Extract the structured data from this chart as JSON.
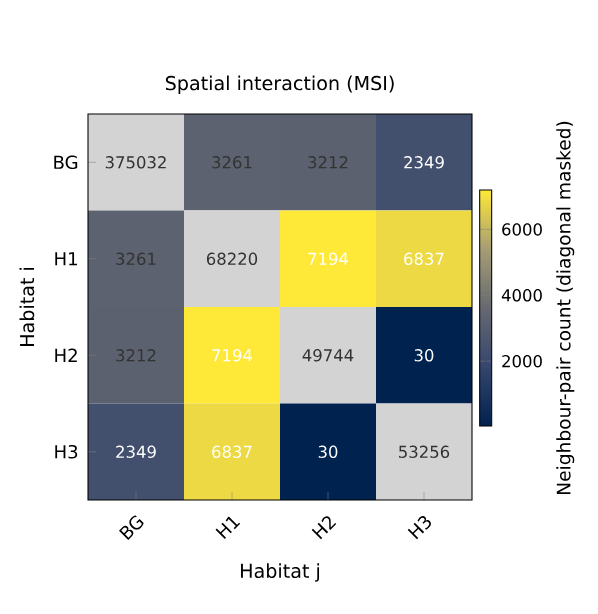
{
  "chart_data": {
    "type": "heatmap",
    "title": "Spatial interaction (MSI)",
    "xlabel": "Habitat j",
    "ylabel": "Habitat i",
    "clabel": "Neighbour-pair count (diagonal masked)",
    "categories": [
      "BG",
      "H1",
      "H2",
      "H3"
    ],
    "y_categories": [
      "BG",
      "H1",
      "H2",
      "H3"
    ],
    "cells": [
      [
        null,
        3261,
        3212,
        2349
      ],
      [
        3261,
        null,
        7194,
        6837
      ],
      [
        3212,
        7194,
        null,
        30
      ],
      [
        2349,
        6837,
        30,
        null
      ]
    ],
    "cell_labels": [
      [
        "375032",
        "3261",
        "3212",
        "2349"
      ],
      [
        "3261",
        "68220",
        "7194",
        "6837"
      ],
      [
        "3212",
        "7194",
        "49744",
        "30"
      ],
      [
        "2349",
        "6837",
        "30",
        "53256"
      ]
    ],
    "clim": [
      30,
      7194
    ],
    "cticks": [
      2000,
      4000,
      6000
    ]
  }
}
